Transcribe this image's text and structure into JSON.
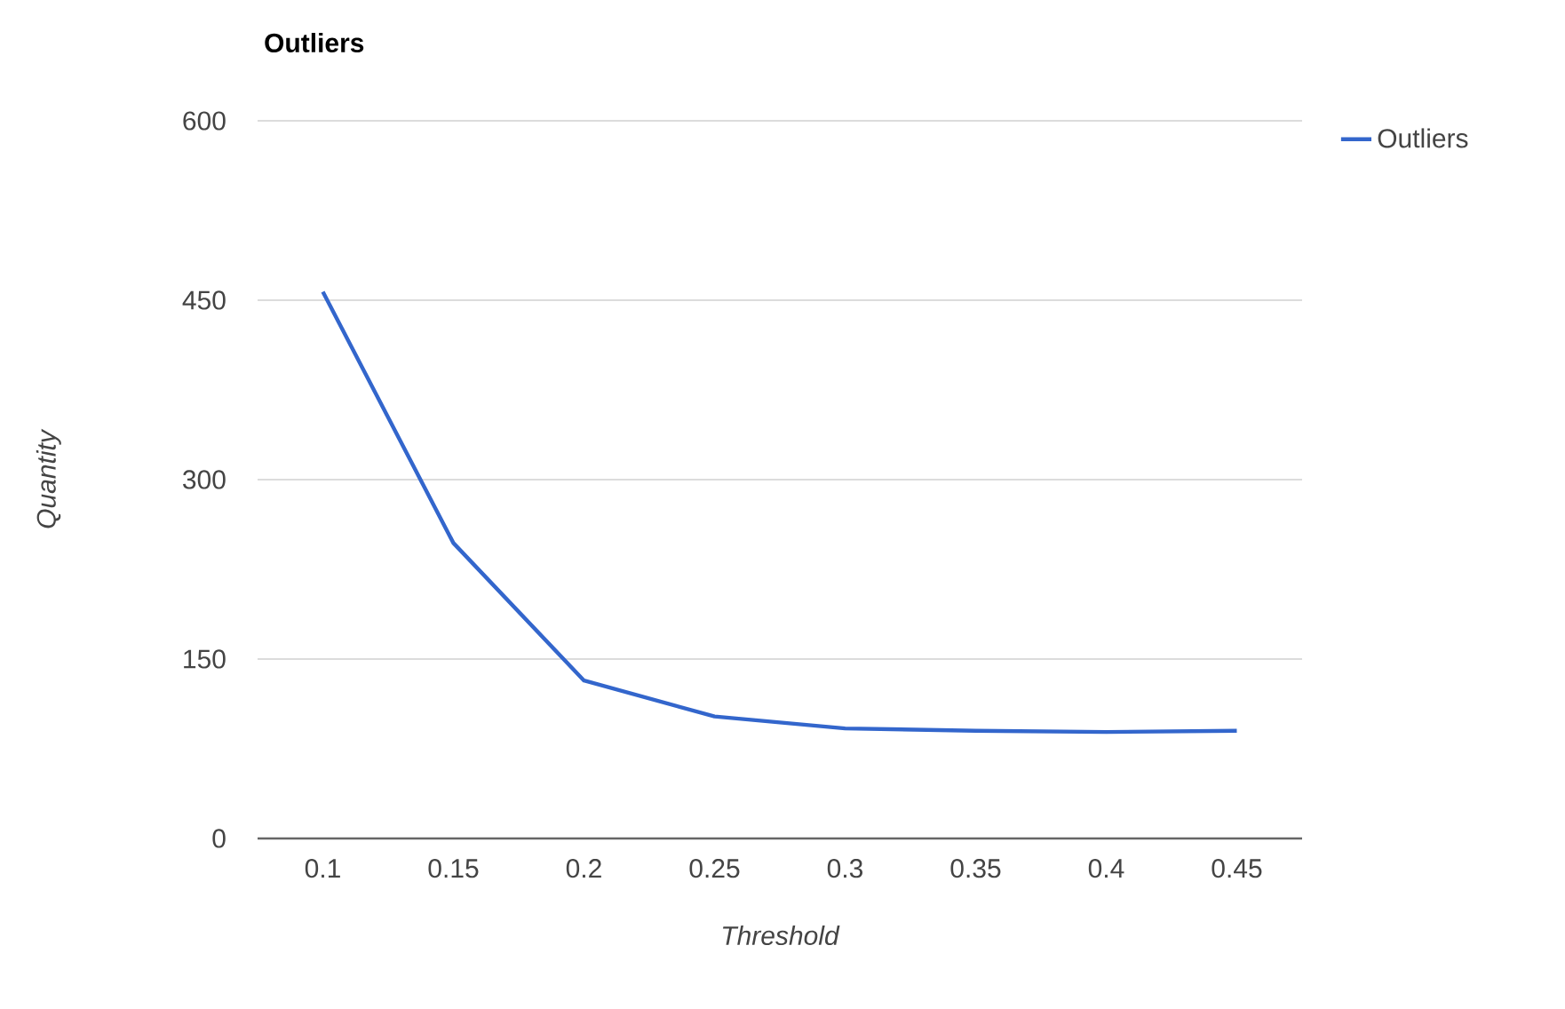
{
  "chart_data": {
    "type": "line",
    "title": "Outliers",
    "xlabel": "Threshold",
    "ylabel": "Quantity",
    "categories": [
      "0.1",
      "0.15",
      "0.2",
      "0.25",
      "0.3",
      "0.35",
      "0.4",
      "0.45"
    ],
    "series": [
      {
        "name": "Outliers",
        "color": "#3366cc",
        "values": [
          457,
          247,
          132,
          102,
          92,
          90,
          89,
          90
        ]
      }
    ],
    "ylim": [
      0,
      600
    ],
    "yticks": [
      0,
      150,
      300,
      450,
      600
    ],
    "grid": "y",
    "legend": "top right",
    "marker": "none",
    "line_style": "solid"
  }
}
